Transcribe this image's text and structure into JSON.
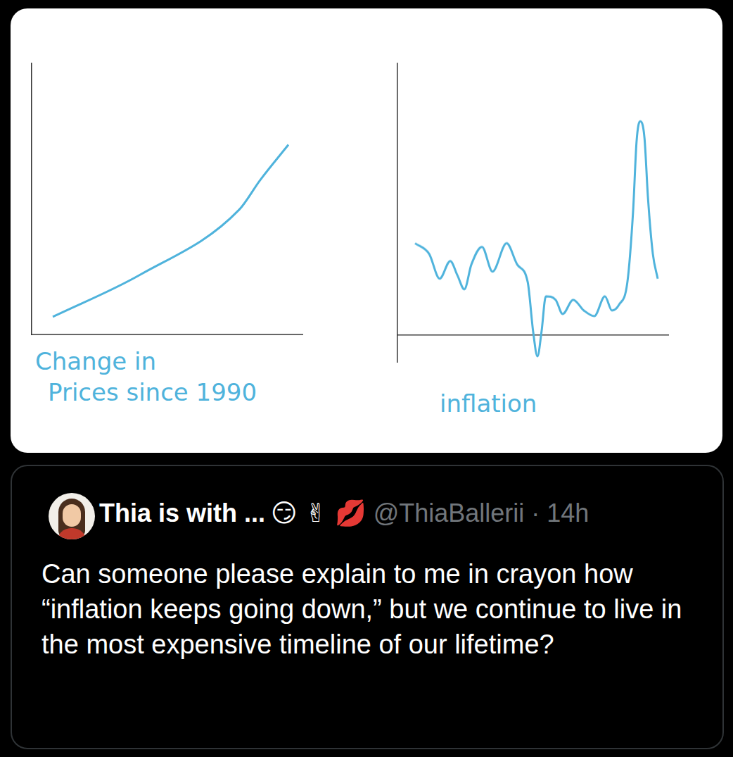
{
  "chart_data": [
    {
      "type": "line",
      "x_label": [
        "Change in",
        "Prices since 1990"
      ],
      "x": [
        7.8,
        40,
        76.6,
        84.4,
        94.8
      ],
      "values": [
        6.5,
        22,
        46,
        57,
        70
      ],
      "color": "#4fb3dc",
      "xlim": [
        0,
        100
      ],
      "ylim": [
        0,
        100
      ],
      "grid": false,
      "tick_labels": false
    },
    {
      "type": "line",
      "x_label": [
        "inflation"
      ],
      "x": [
        6.5,
        11.7,
        15.6,
        19.5,
        22.1,
        24.7,
        27.3,
        31.2,
        35.1,
        40.3,
        44.2,
        48.1,
        50.1,
        51.7,
        53.2,
        54.8,
        58.4,
        61,
        64.9,
        68.8,
        72.7,
        76.6,
        79.2,
        81.8,
        84.9,
        87,
        88.3,
        89.6,
        91.2,
        92.5,
        94.3,
        96.1
      ],
      "values": [
        33.8,
        29.9,
        20.8,
        27.3,
        22.1,
        16.9,
        26,
        32.5,
        23.4,
        33.8,
        26,
        19.5,
        1.3,
        -7.8,
        1.3,
        14.3,
        13,
        7.8,
        13,
        9.1,
        7,
        14.3,
        9.1,
        11.2,
        19.5,
        45.5,
        71.4,
        78.7,
        72.7,
        50.6,
        29.9,
        20.8
      ],
      "color": "#4fb3dc",
      "xlim": [
        0,
        100
      ],
      "ylim": [
        -10,
        100
      ],
      "grid": false,
      "tick_labels": false
    }
  ],
  "tweet": {
    "display_name": "Thia is with ...",
    "emoji": [
      "😏",
      "✌",
      "💋"
    ],
    "handle": "@ThiaBallerii · 14h",
    "text": "Can someone please explain to me in crayon how “inflation keeps going down,” but we continue to live in the most expensive timeline of our lifetime?"
  }
}
